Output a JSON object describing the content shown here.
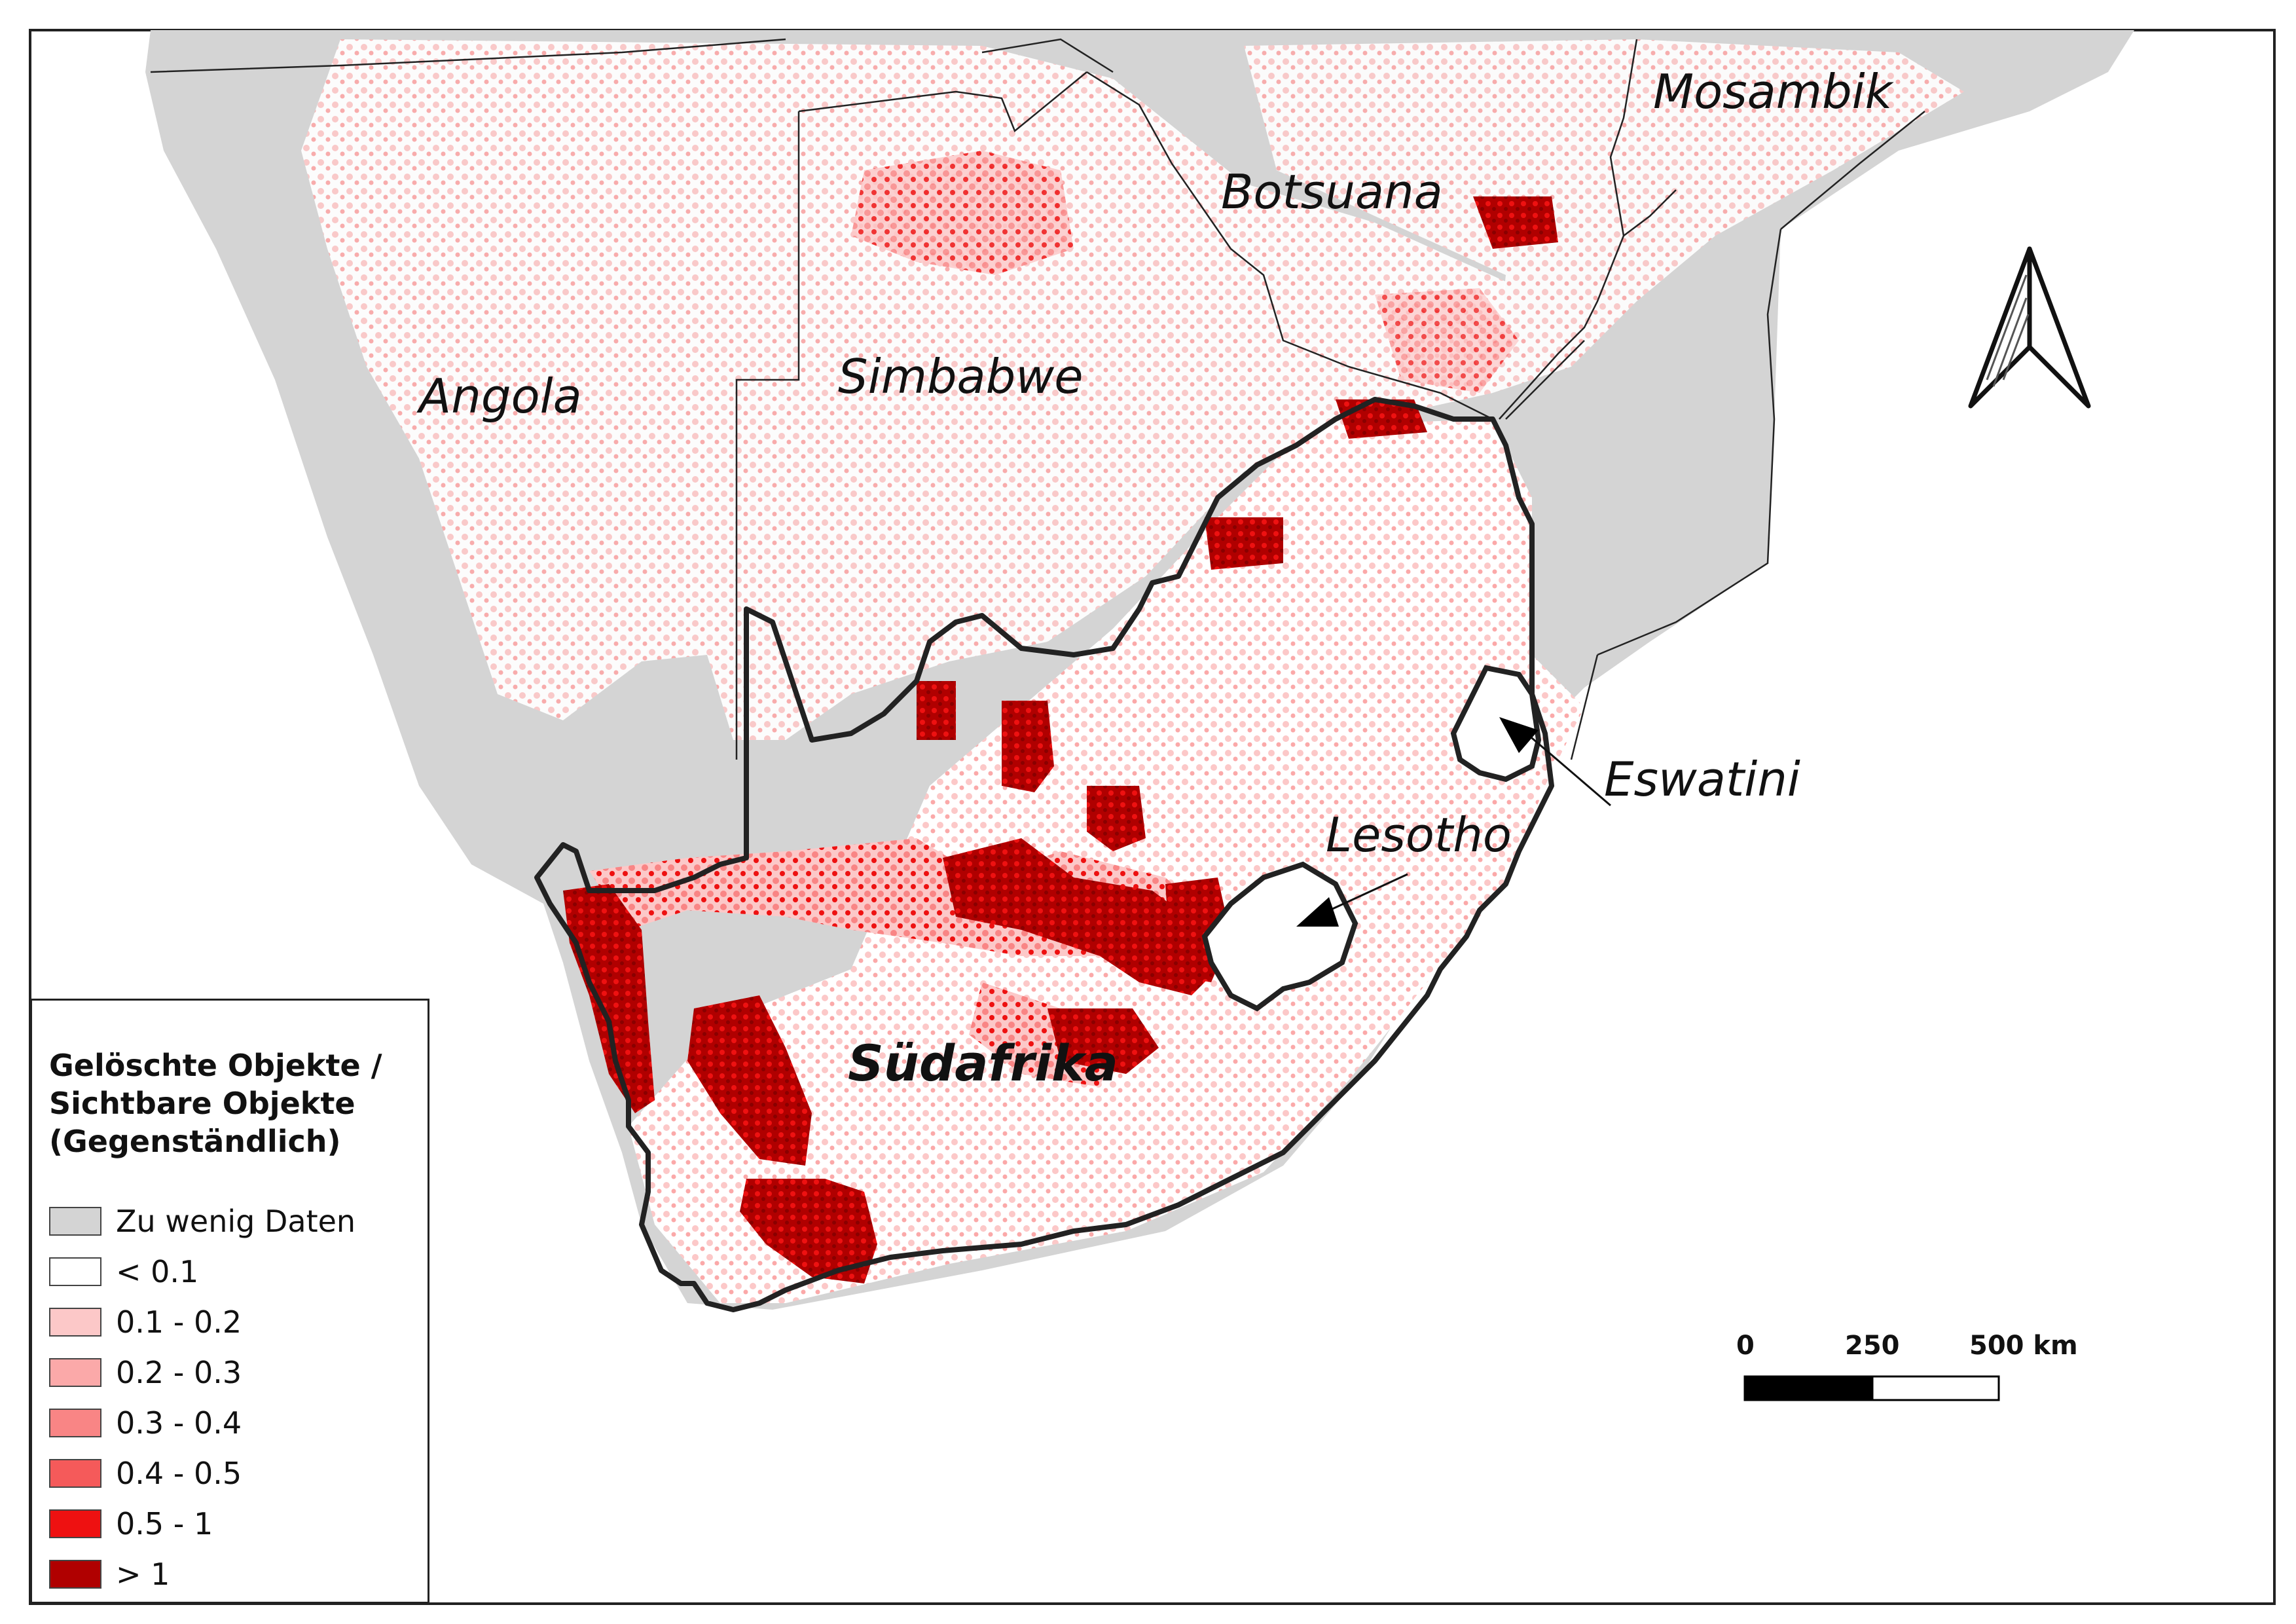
{
  "labels": {
    "angola": "Angola",
    "simbabwe": "Simbabwe",
    "botsuana": "Botsuana",
    "mosambik": "Mosambik",
    "suedafrika": "Südafrika",
    "lesotho": "Lesotho",
    "eswatini": "Eswatini"
  },
  "legend": {
    "title": "Gelöschte Objekte /\nSichtbare Objekte\n(Gegenständlich)",
    "items": [
      {
        "label": "Zu wenig Daten",
        "color": "#d4d4d4"
      },
      {
        "label": "< 0.1",
        "color": "#ffffff"
      },
      {
        "label": "0.1 - 0.2",
        "color": "#fcc8c8"
      },
      {
        "label": "0.2 - 0.3",
        "color": "#fba9a9"
      },
      {
        "label": "0.3 - 0.4",
        "color": "#f98585"
      },
      {
        "label": "0.4 - 0.5",
        "color": "#f55a5a"
      },
      {
        "label": "0.5 - 1",
        "color": "#ee1111"
      },
      {
        "label": "> 1",
        "color": "#b00000"
      }
    ]
  },
  "scale_bar": {
    "tick_0": "0",
    "tick_250": "250",
    "tick_500": "500 km"
  },
  "colors": {
    "border": "#222222",
    "nodata": "#d4d4d4",
    "low": "#ffffff"
  }
}
